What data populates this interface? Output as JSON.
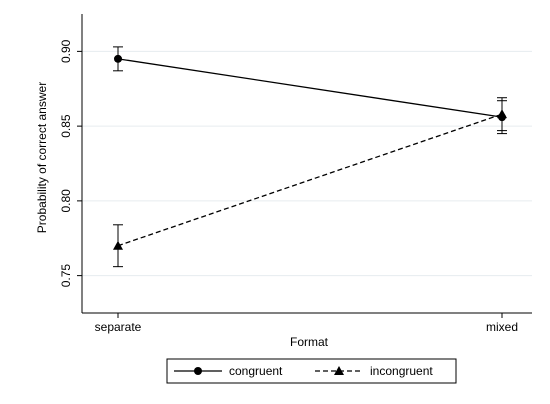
{
  "chart_data": {
    "type": "line",
    "title": "",
    "xlabel": "Format",
    "ylabel": "Probability of correct answer",
    "categories": [
      "separate",
      "mixed"
    ],
    "ylim": [
      0.725,
      0.925
    ],
    "yticks": [
      0.75,
      0.8,
      0.85,
      0.9
    ],
    "ytick_labels": [
      "0.75",
      "0.80",
      "0.85",
      "0.90"
    ],
    "grid": true,
    "legend_position": "bottom",
    "series": [
      {
        "name": "congruent",
        "marker": "circle",
        "line_style": "solid",
        "values": [
          0.895,
          0.856
        ],
        "ci_low": [
          0.887,
          0.845
        ],
        "ci_high": [
          0.903,
          0.867
        ]
      },
      {
        "name": "incongruent",
        "marker": "triangle",
        "line_style": "dashed",
        "values": [
          0.77,
          0.858
        ],
        "ci_low": [
          0.756,
          0.847
        ],
        "ci_high": [
          0.784,
          0.869
        ]
      }
    ]
  },
  "colors": {
    "background": "#ffffff",
    "gridline": "#e6ecef",
    "line": "#000000"
  }
}
